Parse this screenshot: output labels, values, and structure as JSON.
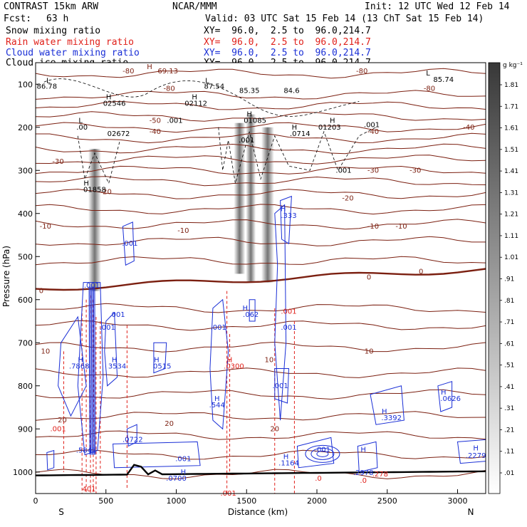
{
  "header": {
    "title_left": "CONTRAST 15km ARW",
    "center": "NCAR/MMM",
    "init": "Init: 12 UTC Wed 12 Feb 14",
    "fcst_label": "Fcst:",
    "fcst_value": "63 h",
    "valid": "Valid: 03 UTC Sat 15 Feb 14 (13 ChT Sat 15 Feb 14)",
    "fields": [
      {
        "name": "Snow mixing ratio",
        "xy": "XY=  96.0,  2.5 to  96.0,214.7",
        "color": "#000000"
      },
      {
        "name": "Rain water mixing ratio",
        "xy": "XY=  96.0,  2.5 to  96.0,214.7",
        "color": "#e0201a"
      },
      {
        "name": "Cloud water mixing ratio",
        "xy": "XY=  96.0,  2.5 to  96.0,214.7",
        "color": "#1a2fd6"
      },
      {
        "name": "Cloud ice mixing ratio",
        "xy": "XY=  96.0,  2.5 to  96.0,214.7",
        "color": "#000000"
      }
    ]
  },
  "chart_data": {
    "type": "cross-section",
    "xlabel": "Distance (km)",
    "ylabel": "Pressure (hPa)",
    "xlim": [
      0,
      3200
    ],
    "ylim": [
      1050,
      50
    ],
    "x_ticks": [
      0,
      500,
      1000,
      1500,
      2000,
      2500,
      3000
    ],
    "y_ticks": [
      100,
      200,
      300,
      400,
      500,
      600,
      700,
      800,
      900,
      1000
    ],
    "end_labels": {
      "left": "S",
      "right": "N"
    },
    "colorbar": {
      "unit": "g kg⁻¹",
      "labels": [
        "1.81",
        "1.71",
        "1.61",
        "1.51",
        "1.41",
        "1.31",
        "1.21",
        "1.11",
        "1.01",
        ".91",
        ".81",
        ".71",
        ".61",
        ".51",
        ".41",
        ".31",
        ".21",
        ".11",
        ".01"
      ]
    },
    "temperature_contours": [
      {
        "label": "-80",
        "x": 2800,
        "p": 110
      },
      {
        "label": "-80",
        "x": 950,
        "p": 110
      },
      {
        "label": "-80",
        "x": 660,
        "p": 70
      },
      {
        "label": "-80",
        "x": 2320,
        "p": 70
      },
      {
        "label": "-50",
        "x": 850,
        "p": 185
      },
      {
        "label": "-40",
        "x": 850,
        "p": 210
      },
      {
        "label": "-40",
        "x": 2400,
        "p": 210
      },
      {
        "label": "-40",
        "x": 3080,
        "p": 200
      },
      {
        "label": "-30",
        "x": 160,
        "p": 280
      },
      {
        "label": "-30",
        "x": 2400,
        "p": 300
      },
      {
        "label": "-30",
        "x": 2700,
        "p": 300
      },
      {
        "label": "-20",
        "x": 500,
        "p": 350
      },
      {
        "label": "-20",
        "x": 2220,
        "p": 365
      },
      {
        "label": "-10",
        "x": 70,
        "p": 430
      },
      {
        "label": "-10",
        "x": 1050,
        "p": 440
      },
      {
        "label": "-10",
        "x": 2400,
        "p": 430
      },
      {
        "label": "-10",
        "x": 2600,
        "p": 430
      },
      {
        "label": "0",
        "x": 40,
        "p": 580
      },
      {
        "label": "0",
        "x": 2370,
        "p": 548
      },
      {
        "label": "0",
        "x": 2740,
        "p": 535
      },
      {
        "label": "10",
        "x": 70,
        "p": 720
      },
      {
        "label": "10",
        "x": 1660,
        "p": 740
      },
      {
        "label": "10",
        "x": 2370,
        "p": 720
      },
      {
        "label": "20",
        "x": 190,
        "p": 880
      },
      {
        "label": "20",
        "x": 950,
        "p": 888
      },
      {
        "label": "20",
        "x": 1700,
        "p": 900
      }
    ],
    "annotations": [
      {
        "text": "H",
        "x": 810,
        "p": 60,
        "color": "#7b1f10"
      },
      {
        "text": "69.13",
        "x": 940,
        "p": 70,
        "color": "#7b1f10"
      },
      {
        "text": "L",
        "x": 90,
        "p": 92,
        "color": "#000000"
      },
      {
        "text": "86.78",
        "x": 80,
        "p": 105,
        "color": "#000000"
      },
      {
        "text": "L",
        "x": 1220,
        "p": 92,
        "color": "#000000"
      },
      {
        "text": "87.54",
        "x": 1270,
        "p": 105,
        "color": "#000000"
      },
      {
        "text": "85.35",
        "x": 1520,
        "p": 115,
        "color": "#000000"
      },
      {
        "text": "84.6",
        "x": 1820,
        "p": 115,
        "color": "#000000"
      },
      {
        "text": "L",
        "x": 2790,
        "p": 75,
        "color": "#000000"
      },
      {
        "text": "85.74",
        "x": 2900,
        "p": 90,
        "color": "#000000"
      },
      {
        "text": "H",
        "x": 520,
        "p": 130,
        "color": "#000000"
      },
      {
        "text": "02546",
        "x": 560,
        "p": 145,
        "color": "#000000"
      },
      {
        "text": "H",
        "x": 1130,
        "p": 130,
        "color": "#000000"
      },
      {
        "text": "02112",
        "x": 1140,
        "p": 145,
        "color": "#000000"
      },
      {
        "text": ".001",
        "x": 990,
        "p": 185,
        "color": "#000000"
      },
      {
        "text": "L",
        "x": 320,
        "p": 185,
        "color": "#000000"
      },
      {
        "text": ".00",
        "x": 330,
        "p": 200,
        "color": "#000000"
      },
      {
        "text": "02672",
        "x": 590,
        "p": 215,
        "color": "#000000"
      },
      {
        "text": "H",
        "x": 1520,
        "p": 170,
        "color": "#000000"
      },
      {
        "text": "01085",
        "x": 1560,
        "p": 185,
        "color": "#000000"
      },
      {
        "text": "H",
        "x": 2110,
        "p": 185,
        "color": "#000000"
      },
      {
        "text": "01203",
        "x": 2090,
        "p": 200,
        "color": "#000000"
      },
      {
        "text": "H",
        "x": 1840,
        "p": 200,
        "color": "#000000"
      },
      {
        "text": ".0714",
        "x": 1880,
        "p": 215,
        "color": "#000000"
      },
      {
        "text": ".001",
        "x": 2390,
        "p": 195,
        "color": "#000000"
      },
      {
        "text": ".001",
        "x": 1500,
        "p": 230,
        "color": "#000000"
      },
      {
        "text": ".001",
        "x": 2190,
        "p": 300,
        "color": "#000000"
      },
      {
        "text": "H",
        "x": 360,
        "p": 330,
        "color": "#000000"
      },
      {
        "text": "01858",
        "x": 420,
        "p": 345,
        "color": "#000000"
      },
      {
        "text": ".001",
        "x": 670,
        "p": 470,
        "color": "#1a2fd6"
      },
      {
        "text": "H",
        "x": 1760,
        "p": 390,
        "color": "#1a2fd6"
      },
      {
        "text": ".333",
        "x": 1800,
        "p": 405,
        "color": "#1a2fd6"
      },
      {
        "text": ".001",
        "x": 400,
        "p": 567,
        "color": "#1a2fd6"
      },
      {
        "text": ".001",
        "x": 580,
        "p": 635,
        "color": "#1a2fd6"
      },
      {
        "text": "H",
        "x": 1490,
        "p": 620,
        "color": "#1a2fd6"
      },
      {
        "text": ".062",
        "x": 1530,
        "p": 635,
        "color": "#1a2fd6"
      },
      {
        "text": ".001",
        "x": 1800,
        "p": 628,
        "color": "#e0201a"
      },
      {
        "text": ".001",
        "x": 1300,
        "p": 665,
        "color": "#1a2fd6"
      },
      {
        "text": ".001",
        "x": 1800,
        "p": 665,
        "color": "#1a2fd6"
      },
      {
        "text": ".001",
        "x": 510,
        "p": 665,
        "color": "#1a2fd6"
      },
      {
        "text": "H",
        "x": 320,
        "p": 740,
        "color": "#1a2fd6"
      },
      {
        "text": ".7868",
        "x": 310,
        "p": 755,
        "color": "#1a2fd6"
      },
      {
        "text": "H",
        "x": 560,
        "p": 740,
        "color": "#1a2fd6"
      },
      {
        "text": "3534",
        "x": 580,
        "p": 755,
        "color": "#1a2fd6"
      },
      {
        "text": "H",
        "x": 860,
        "p": 740,
        "color": "#1a2fd6"
      },
      {
        "text": "0515",
        "x": 900,
        "p": 755,
        "color": "#1a2fd6"
      },
      {
        "text": "H",
        "x": 1380,
        "p": 740,
        "color": "#e0201a"
      },
      {
        "text": ".0300",
        "x": 1410,
        "p": 755,
        "color": "#e0201a"
      },
      {
        "text": "H",
        "x": 1290,
        "p": 830,
        "color": "#1a2fd6"
      },
      {
        "text": ".544",
        "x": 1290,
        "p": 845,
        "color": "#1a2fd6"
      },
      {
        "text": ".001",
        "x": 1740,
        "p": 800,
        "color": "#1a2fd6"
      },
      {
        "text": "H",
        "x": 2480,
        "p": 860,
        "color": "#1a2fd6"
      },
      {
        "text": ".3392",
        "x": 2530,
        "p": 875,
        "color": "#1a2fd6"
      },
      {
        "text": "H",
        "x": 2900,
        "p": 815,
        "color": "#1a2fd6"
      },
      {
        "text": ".0626",
        "x": 2950,
        "p": 830,
        "color": "#1a2fd6"
      },
      {
        "text": ".001",
        "x": 160,
        "p": 900,
        "color": "#e0201a"
      },
      {
        "text": ".0722",
        "x": 690,
        "p": 925,
        "color": "#1a2fd6"
      },
      {
        "text": ".5841",
        "x": 360,
        "p": 950,
        "color": "#1a2fd6"
      },
      {
        "text": ".001",
        "x": 1050,
        "p": 970,
        "color": "#1a2fd6"
      },
      {
        "text": "H",
        "x": 1050,
        "p": 1000,
        "color": "#1a2fd6"
      },
      {
        "text": ".0700",
        "x": 1000,
        "p": 1015,
        "color": "#1a2fd6"
      },
      {
        "text": "H",
        "x": 1780,
        "p": 965,
        "color": "#1a2fd6"
      },
      {
        "text": ".1164",
        "x": 1800,
        "p": 980,
        "color": "#1a2fd6"
      },
      {
        "text": ".001",
        "x": 2040,
        "p": 948,
        "color": "#1a2fd6"
      },
      {
        "text": ".0",
        "x": 2010,
        "p": 1015,
        "color": "#e0201a"
      },
      {
        "text": "H",
        "x": 2330,
        "p": 948,
        "color": "#1a2fd6"
      },
      {
        "text": ".2978",
        "x": 2330,
        "p": 1002,
        "color": "#1a2fd6"
      },
      {
        "text": ".0",
        "x": 2330,
        "p": 1020,
        "color": "#e0201a"
      },
      {
        "text": ".278",
        "x": 2450,
        "p": 1005,
        "color": "#e0201a"
      },
      {
        "text": "H",
        "x": 3130,
        "p": 945,
        "color": "#1a2fd6"
      },
      {
        "text": ".2279",
        "x": 3130,
        "p": 962,
        "color": "#1a2fd6"
      },
      {
        "text": ".001",
        "x": 1370,
        "p": 1050,
        "color": "#e0201a"
      },
      {
        "text": "401",
        "x": 380,
        "p": 1040,
        "color": "#e0201a"
      }
    ]
  }
}
